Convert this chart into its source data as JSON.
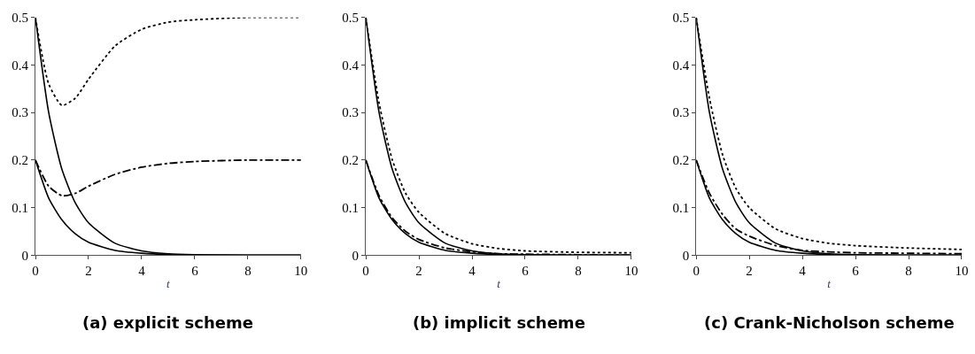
{
  "chart_data": [
    {
      "type": "line",
      "title": "(a) explicit scheme",
      "xlabel": "t",
      "xlim": [
        0,
        10
      ],
      "xticks": [
        0,
        2,
        4,
        6,
        8,
        10
      ],
      "ylim": [
        0,
        0.5
      ],
      "yticks": [
        0,
        0.1,
        0.2,
        0.3,
        0.4,
        0.5
      ],
      "marker": "none",
      "x": [
        0,
        0.5,
        1,
        1.5,
        2,
        3,
        4,
        5,
        6,
        8,
        10
      ],
      "series": [
        {
          "color": "#000000",
          "line_style": "solid",
          "values": [
            0.5,
            0.3,
            0.18,
            0.11,
            0.068,
            0.025,
            0.009,
            0.003,
            0.001,
            0,
            0
          ]
        },
        {
          "color": "#000000",
          "line_style": "solid",
          "values": [
            0.2,
            0.12,
            0.074,
            0.045,
            0.027,
            0.01,
            0.004,
            0.001,
            0,
            0,
            0
          ]
        },
        {
          "color": "#000000",
          "line_style": "dotted",
          "values": [
            0.5,
            0.36,
            0.315,
            0.33,
            0.37,
            0.44,
            0.475,
            0.49,
            0.495,
            0.5,
            0.5
          ]
        },
        {
          "color": "#000000",
          "line_style": "dashdot",
          "values": [
            0.2,
            0.145,
            0.125,
            0.13,
            0.145,
            0.17,
            0.185,
            0.193,
            0.197,
            0.2,
            0.2
          ]
        }
      ]
    },
    {
      "type": "line",
      "title": "(b) implicit scheme",
      "xlabel": "t",
      "xlim": [
        0,
        10
      ],
      "xticks": [
        0,
        2,
        4,
        6,
        8,
        10
      ],
      "ylim": [
        0,
        0.5
      ],
      "yticks": [
        0,
        0.1,
        0.2,
        0.3,
        0.4,
        0.5
      ],
      "marker": "none",
      "x": [
        0,
        0.5,
        1,
        1.5,
        2,
        3,
        4,
        5,
        6,
        8,
        10
      ],
      "series": [
        {
          "color": "#000000",
          "line_style": "solid",
          "values": [
            0.5,
            0.3,
            0.18,
            0.11,
            0.068,
            0.025,
            0.009,
            0.003,
            0.001,
            0,
            0
          ]
        },
        {
          "color": "#000000",
          "line_style": "solid",
          "values": [
            0.2,
            0.12,
            0.074,
            0.045,
            0.027,
            0.01,
            0.004,
            0.001,
            0,
            0,
            0
          ]
        },
        {
          "color": "#000000",
          "line_style": "dotted",
          "values": [
            0.5,
            0.32,
            0.2,
            0.13,
            0.09,
            0.045,
            0.024,
            0.014,
            0.009,
            0.006,
            0.005
          ]
        },
        {
          "color": "#000000",
          "line_style": "dashdot",
          "values": [
            0.2,
            0.125,
            0.078,
            0.05,
            0.033,
            0.015,
            0.007,
            0.003,
            0.002,
            0.001,
            0
          ]
        }
      ]
    },
    {
      "type": "line",
      "title": "(c) Crank-Nicholson scheme",
      "xlabel": "t",
      "xlim": [
        0,
        10
      ],
      "xticks": [
        0,
        2,
        4,
        6,
        8,
        10
      ],
      "ylim": [
        0,
        0.5
      ],
      "yticks": [
        0,
        0.1,
        0.2,
        0.3,
        0.4,
        0.5
      ],
      "marker": "none",
      "x": [
        0,
        0.5,
        1,
        1.5,
        2,
        3,
        4,
        5,
        6,
        8,
        10
      ],
      "series": [
        {
          "color": "#000000",
          "line_style": "solid",
          "values": [
            0.5,
            0.3,
            0.18,
            0.11,
            0.068,
            0.025,
            0.009,
            0.003,
            0.001,
            0,
            0
          ]
        },
        {
          "color": "#000000",
          "line_style": "solid",
          "values": [
            0.2,
            0.12,
            0.074,
            0.045,
            0.027,
            0.01,
            0.004,
            0.001,
            0,
            0,
            0
          ]
        },
        {
          "color": "#000000",
          "line_style": "dotted",
          "values": [
            0.5,
            0.33,
            0.21,
            0.14,
            0.1,
            0.055,
            0.035,
            0.025,
            0.02,
            0.015,
            0.012
          ]
        },
        {
          "color": "#000000",
          "line_style": "dashdot",
          "values": [
            0.2,
            0.13,
            0.085,
            0.055,
            0.04,
            0.02,
            0.01,
            0.007,
            0.005,
            0.004,
            0.003
          ]
        }
      ]
    }
  ]
}
